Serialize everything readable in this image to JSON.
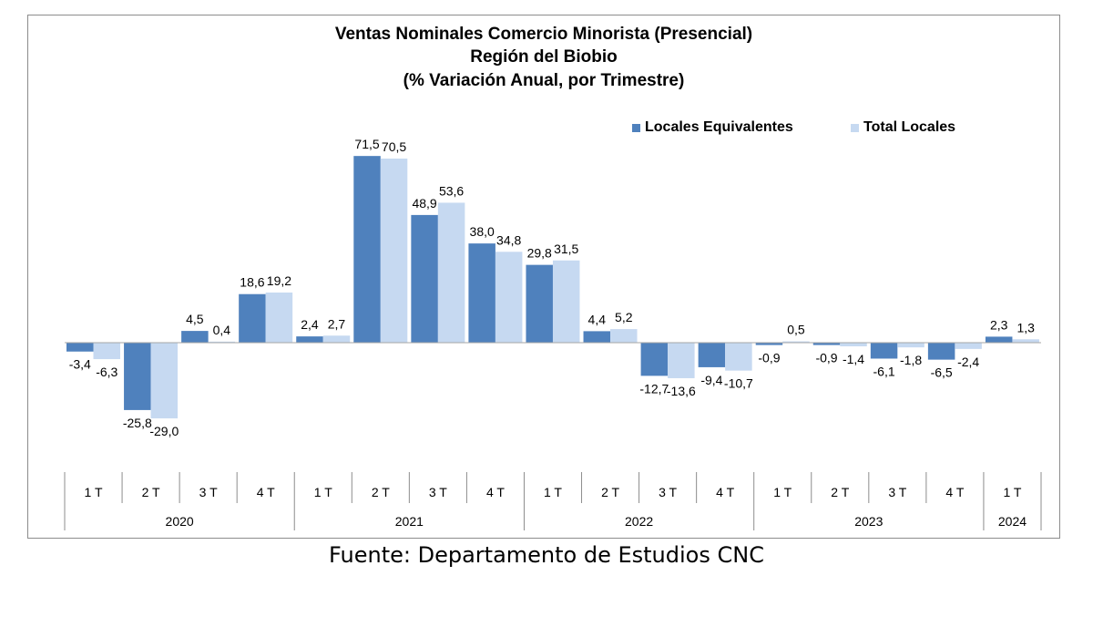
{
  "chart_data": {
    "type": "bar",
    "title": [
      "Ventas Nominales Comercio Minorista (Presencial)",
      "Región del Biobio",
      "(% Variación Anual, por Trimestre)"
    ],
    "categories": [
      "1 T",
      "2 T",
      "3 T",
      "4 T",
      "1 T",
      "2 T",
      "3 T",
      "4 T",
      "1 T",
      "2 T",
      "3 T",
      "4 T",
      "1 T",
      "2 T",
      "3 T",
      "4 T",
      "1 T"
    ],
    "years": [
      {
        "label": "2020",
        "count": 4
      },
      {
        "label": "2021",
        "count": 4
      },
      {
        "label": "2022",
        "count": 4
      },
      {
        "label": "2023",
        "count": 4
      },
      {
        "label": "2024",
        "count": 1
      }
    ],
    "series": [
      {
        "name": "Locales Equivalentes",
        "color": "#4f81bd",
        "values": [
          -3.4,
          -25.8,
          4.5,
          18.6,
          2.4,
          71.5,
          48.9,
          38.0,
          29.8,
          4.4,
          -12.7,
          -9.4,
          -0.9,
          -0.9,
          -6.1,
          -6.5,
          2.3
        ],
        "labels": [
          "-3,4",
          "-25,8",
          "4,5",
          "18,6",
          "2,4",
          "71,5",
          "48,9",
          "38,0",
          "29,8",
          "4,4",
          "-12,7",
          "-9,4",
          "-0,9",
          "-0,9",
          "-6,1",
          "-6,5",
          "2,3"
        ]
      },
      {
        "name": "Total Locales",
        "color": "#c6d9f1",
        "values": [
          -6.3,
          -29.0,
          0.4,
          19.2,
          2.7,
          70.5,
          53.6,
          34.8,
          31.5,
          5.2,
          -13.6,
          -10.7,
          0.5,
          -1.4,
          -1.8,
          -2.4,
          1.3
        ],
        "labels": [
          "-6,3",
          "-29,0",
          "0,4",
          "19,2",
          "2,7",
          "70,5",
          "53,6",
          "34,8",
          "31,5",
          "5,2",
          "-13,6",
          "-10,7",
          "0,5",
          "-1,4",
          "-1,8",
          "-2,4",
          "1,3"
        ]
      }
    ],
    "ylim": [
      -40,
      75
    ],
    "grid": false,
    "legend": "top-right"
  },
  "source_note": "Fuente: Departamento de Estudios CNC"
}
